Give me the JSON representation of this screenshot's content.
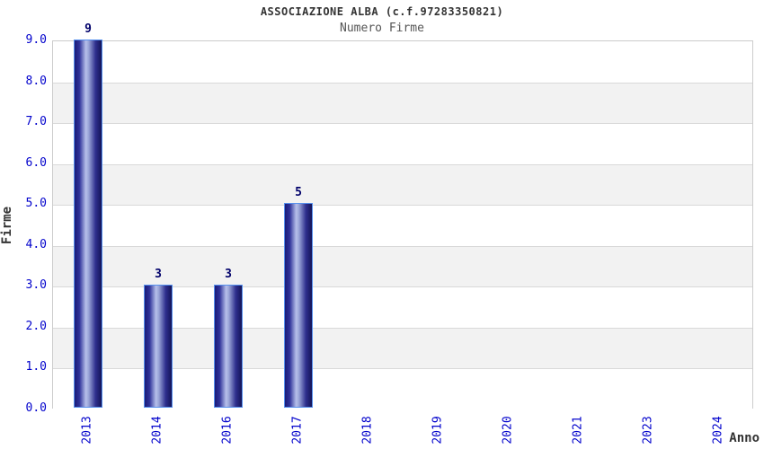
{
  "chart_data": {
    "type": "bar",
    "title": "ASSOCIAZIONE ALBA (c.f.97283350821)",
    "subtitle": "Numero Firme",
    "xlabel": "Anno",
    "ylabel": "Firme",
    "categories": [
      "2013",
      "2014",
      "2016",
      "2017",
      "2018",
      "2019",
      "2020",
      "2021",
      "2023",
      "2024"
    ],
    "values": [
      9,
      3,
      3,
      5,
      0,
      0,
      0,
      0,
      0,
      0
    ],
    "ylim": [
      0,
      9
    ],
    "ytick_step": 1,
    "ytick_labels": [
      "0.0",
      "1.0",
      "2.0",
      "3.0",
      "4.0",
      "5.0",
      "6.0",
      "7.0",
      "8.0",
      "9.0"
    ],
    "bar_value_labels": [
      "9",
      "3",
      "3",
      "5",
      "",
      "",
      "",
      "",
      "",
      ""
    ],
    "grid": "horizontal-bands",
    "legend_position": "none",
    "colors": {
      "title": "#333333",
      "subtitle": "#555555",
      "axis_title": "#333333",
      "tick_label": "#0202cc",
      "value_label": "#00006a",
      "band_light": "#ffffff",
      "band_dark": "#f2f2f2",
      "gridline": "#d9d9d9",
      "plot_border": "#cccccc",
      "bar_dark": "#1b1b78",
      "bar_mid": "#2f339a",
      "bar_light": "#b7c0ea",
      "bar_border": "#5590ee"
    }
  }
}
